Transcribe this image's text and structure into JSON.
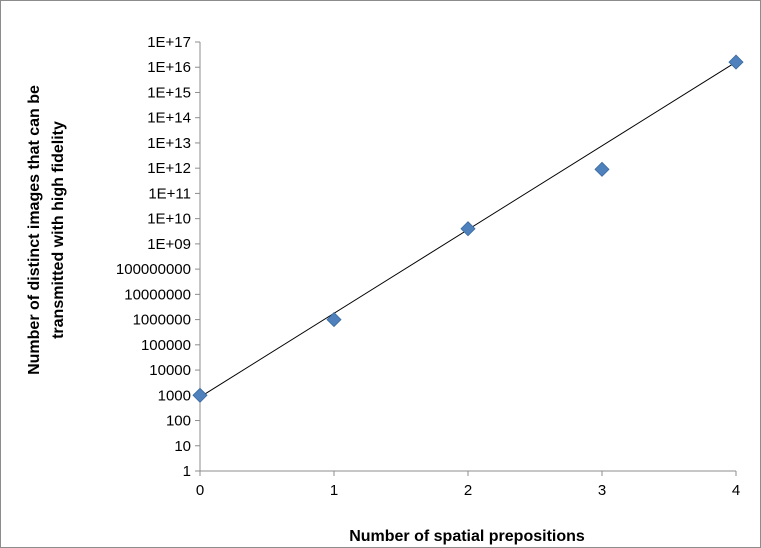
{
  "chart_data": {
    "type": "scatter",
    "title": "",
    "xlabel": "Number of spatial prepositions",
    "ylabel_lines": [
      "Number of distinct images that can be",
      "transmitted with high fidelity"
    ],
    "x_ticks": [
      "0",
      "1",
      "2",
      "3",
      "4"
    ],
    "xlim": [
      0,
      4
    ],
    "y_scale": "log",
    "ylim": [
      1,
      1e+17
    ],
    "y_ticks": [
      {
        "value": 1,
        "label": "1"
      },
      {
        "value": 10,
        "label": "10"
      },
      {
        "value": 100,
        "label": "100"
      },
      {
        "value": 1000,
        "label": "1000"
      },
      {
        "value": 10000,
        "label": "10000"
      },
      {
        "value": 100000,
        "label": "100000"
      },
      {
        "value": 1000000,
        "label": "1000000"
      },
      {
        "value": 10000000,
        "label": "10000000"
      },
      {
        "value": 100000000,
        "label": "100000000"
      },
      {
        "value": 1000000000.0,
        "label": "1E+09"
      },
      {
        "value": 10000000000.0,
        "label": "1E+10"
      },
      {
        "value": 100000000000.0,
        "label": "1E+11"
      },
      {
        "value": 1000000000000.0,
        "label": "1E+12"
      },
      {
        "value": 10000000000000.0,
        "label": "1E+13"
      },
      {
        "value": 100000000000000.0,
        "label": "1E+14"
      },
      {
        "value": 1000000000000000.0,
        "label": "1E+15"
      },
      {
        "value": 1e+16,
        "label": "1E+16"
      },
      {
        "value": 1e+17,
        "label": "1E+17"
      }
    ],
    "series": [
      {
        "marker": "diamond",
        "color": "#4f81bd",
        "points": [
          {
            "x": 0,
            "y": 1000
          },
          {
            "x": 1,
            "y": 1000000
          },
          {
            "x": 2,
            "y": 4000000000
          },
          {
            "x": 3,
            "y": 900000000000
          },
          {
            "x": 4,
            "y": 1.6e+16
          }
        ]
      }
    ],
    "trendline": {
      "type": "exponential",
      "from": {
        "x": 0,
        "y": 850
      },
      "to": {
        "x": 4,
        "y": 1.6e+16
      },
      "color": "#000000"
    },
    "grid": false,
    "legend": "none"
  }
}
